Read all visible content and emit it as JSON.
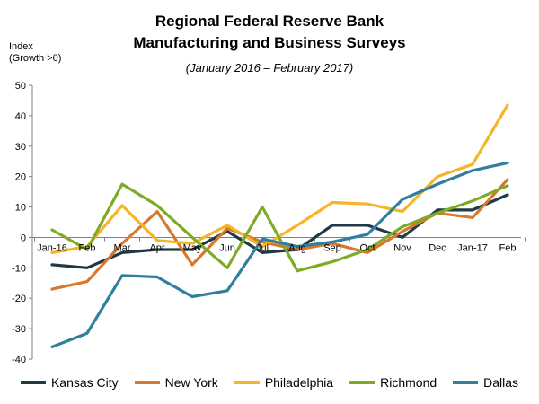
{
  "chart_data": {
    "type": "line",
    "title_line1": "Regional Federal Reserve Bank",
    "title_line2": "Manufacturing  and Business Surveys",
    "subtitle": "(January 2016 – February 2017)",
    "ylabel_line1": "Index",
    "ylabel_line2": "(Growth >0)",
    "categories": [
      "Jan-16",
      "Feb",
      "Mar",
      "Apr",
      "May",
      "Jun",
      "Jul",
      "Aug",
      "Sep",
      "Oct",
      "Nov",
      "Dec",
      "Jan-17",
      "Feb"
    ],
    "ylim": [
      -40,
      50
    ],
    "yticks": [
      -40,
      -30,
      -20,
      -10,
      0,
      10,
      20,
      30,
      40,
      50
    ],
    "legend_position": "bottom",
    "series": [
      {
        "name": "Kansas City",
        "color": "#1f3a44",
        "values": [
          -9,
          -10,
          -5,
          -4,
          -4,
          2,
          -5,
          -4,
          4,
          4,
          0,
          9,
          9,
          14
        ]
      },
      {
        "name": "New York",
        "color": "#d9772c",
        "values": [
          -17,
          -14.5,
          -2,
          8.5,
          -9,
          3,
          -1.5,
          -4,
          -2,
          -5,
          2,
          8,
          6.5,
          19
        ]
      },
      {
        "name": "Philadelphia",
        "color": "#f5b526",
        "values": [
          -5,
          -3,
          10.5,
          -1,
          -2,
          4,
          -3,
          4,
          11.5,
          11,
          8.5,
          20,
          24,
          43.5
        ]
      },
      {
        "name": "Richmond",
        "color": "#7eab25",
        "values": [
          2.5,
          -4,
          17.5,
          10.5,
          0,
          -10,
          10,
          -11,
          -8,
          -4,
          3.5,
          8,
          12,
          17
        ]
      },
      {
        "name": "Dallas",
        "color": "#2f7f9d",
        "values": [
          -36,
          -31.5,
          -12.5,
          -13,
          -19.5,
          -17.5,
          -0.5,
          -3,
          -1.5,
          1,
          12.5,
          17.5,
          22,
          24.5
        ]
      }
    ]
  }
}
